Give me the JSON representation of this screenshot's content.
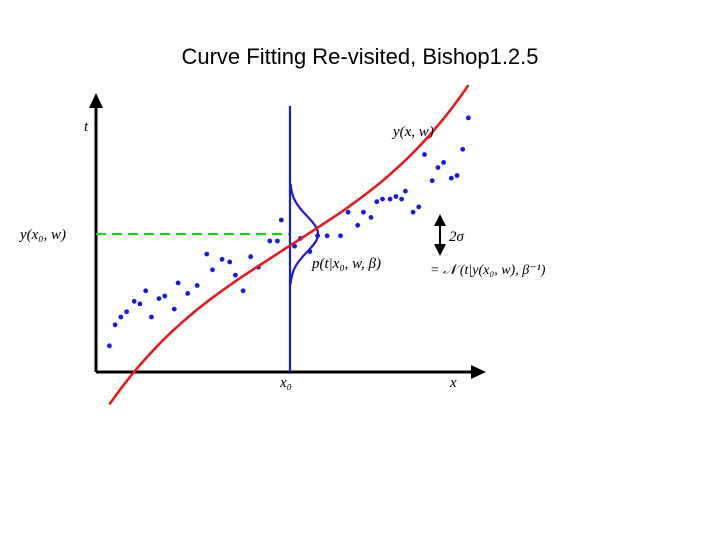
{
  "slide": {
    "title": "Curve Fitting Re-visited, Bishop1.2.5"
  },
  "figure": {
    "labels": {
      "t_axis": "t",
      "x_axis": "x",
      "x0": "x₀",
      "y_x0_w": "y(x₀, w)",
      "curve": "y(x, w)",
      "sigma_span": "2σ",
      "density": "p(t|x₀, w, β)",
      "density_def": "= 𝒩 (t|y(x₀, w), β⁻¹)"
    },
    "colors": {
      "axis": "#000000",
      "curve": "#e41a1c",
      "points": "#1a1adb",
      "gaussian": "#1a1adb",
      "dashed_line": "#22cc22"
    },
    "x_range": [
      0,
      1
    ],
    "t_range": [
      0,
      1
    ],
    "x0": 0.5,
    "sigma": 0.12,
    "samples": [
      [
        0.035,
        0.1
      ],
      [
        0.05,
        0.18
      ],
      [
        0.065,
        0.21
      ],
      [
        0.08,
        0.23
      ],
      [
        0.1,
        0.27
      ],
      [
        0.115,
        0.26
      ],
      [
        0.13,
        0.31
      ],
      [
        0.145,
        0.21
      ],
      [
        0.165,
        0.28
      ],
      [
        0.18,
        0.29
      ],
      [
        0.205,
        0.24
      ],
      [
        0.215,
        0.34
      ],
      [
        0.24,
        0.3
      ],
      [
        0.265,
        0.33
      ],
      [
        0.29,
        0.45
      ],
      [
        0.305,
        0.39
      ],
      [
        0.33,
        0.43
      ],
      [
        0.35,
        0.42
      ],
      [
        0.365,
        0.37
      ],
      [
        0.385,
        0.31
      ],
      [
        0.405,
        0.44
      ],
      [
        0.425,
        0.4
      ],
      [
        0.455,
        0.5
      ],
      [
        0.475,
        0.5
      ],
      [
        0.485,
        0.58
      ],
      [
        0.52,
        0.48
      ],
      [
        0.535,
        0.51
      ],
      [
        0.56,
        0.46
      ],
      [
        0.58,
        0.52
      ],
      [
        0.605,
        0.52
      ],
      [
        0.64,
        0.52
      ],
      [
        0.66,
        0.61
      ],
      [
        0.685,
        0.56
      ],
      [
        0.7,
        0.61
      ],
      [
        0.72,
        0.59
      ],
      [
        0.735,
        0.65
      ],
      [
        0.75,
        0.66
      ],
      [
        0.77,
        0.66
      ],
      [
        0.785,
        0.67
      ],
      [
        0.8,
        0.66
      ],
      [
        0.81,
        0.69
      ],
      [
        0.83,
        0.61
      ],
      [
        0.845,
        0.63
      ],
      [
        0.86,
        0.83
      ],
      [
        0.88,
        0.73
      ],
      [
        0.895,
        0.78
      ],
      [
        0.91,
        0.8
      ],
      [
        0.93,
        0.74
      ],
      [
        0.945,
        0.75
      ],
      [
        0.96,
        0.85
      ],
      [
        0.975,
        0.97
      ]
    ]
  }
}
